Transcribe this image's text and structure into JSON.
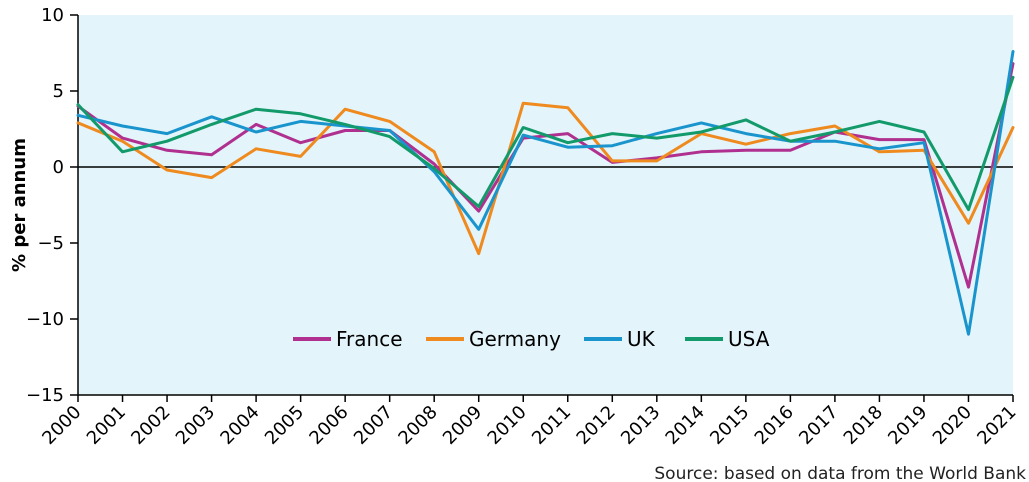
{
  "chart_data": {
    "type": "line",
    "title": "",
    "xlabel": "",
    "ylabel": "% per annum",
    "ylim": [
      -15,
      10
    ],
    "yticks": [
      10,
      5,
      0,
      -5,
      -10,
      -15
    ],
    "ytick_labels": [
      "10",
      "5",
      "0",
      "−5",
      "−10",
      "−15"
    ],
    "x": [
      "2000",
      "2001",
      "2002",
      "2003",
      "2004",
      "2005",
      "2006",
      "2007",
      "2008",
      "2009",
      "2010",
      "2011",
      "2012",
      "2013",
      "2014",
      "2015",
      "2016",
      "2017",
      "2018",
      "2019",
      "2020",
      "2021"
    ],
    "grid": false,
    "legend_position": "inside-bottom-center",
    "series": [
      {
        "name": "France",
        "color": "#b0308f",
        "values": [
          4.0,
          1.9,
          1.1,
          0.8,
          2.8,
          1.6,
          2.4,
          2.4,
          0.2,
          -2.9,
          1.9,
          2.2,
          0.3,
          0.6,
          1.0,
          1.1,
          1.1,
          2.3,
          1.8,
          1.8,
          -7.9,
          6.8
        ]
      },
      {
        "name": "Germany",
        "color": "#ef8a1e",
        "values": [
          2.9,
          1.7,
          -0.2,
          -0.7,
          1.2,
          0.7,
          3.8,
          3.0,
          1.0,
          -5.7,
          4.2,
          3.9,
          0.4,
          0.4,
          2.2,
          1.5,
          2.2,
          2.7,
          1.0,
          1.1,
          -3.7,
          2.6
        ]
      },
      {
        "name": "UK",
        "color": "#1a94cc",
        "values": [
          3.4,
          2.7,
          2.2,
          3.3,
          2.3,
          3.0,
          2.7,
          2.4,
          -0.3,
          -4.1,
          2.1,
          1.3,
          1.4,
          2.2,
          2.9,
          2.2,
          1.7,
          1.7,
          1.2,
          1.6,
          -11.0,
          7.6
        ]
      },
      {
        "name": "USA",
        "color": "#139a6a",
        "values": [
          4.1,
          1.0,
          1.7,
          2.8,
          3.8,
          3.5,
          2.8,
          2.0,
          -0.1,
          -2.6,
          2.6,
          1.6,
          2.2,
          1.9,
          2.3,
          3.1,
          1.7,
          2.3,
          3.0,
          2.3,
          -2.8,
          5.9
        ]
      }
    ]
  },
  "source_text": "Source: based on data from the World Bank"
}
